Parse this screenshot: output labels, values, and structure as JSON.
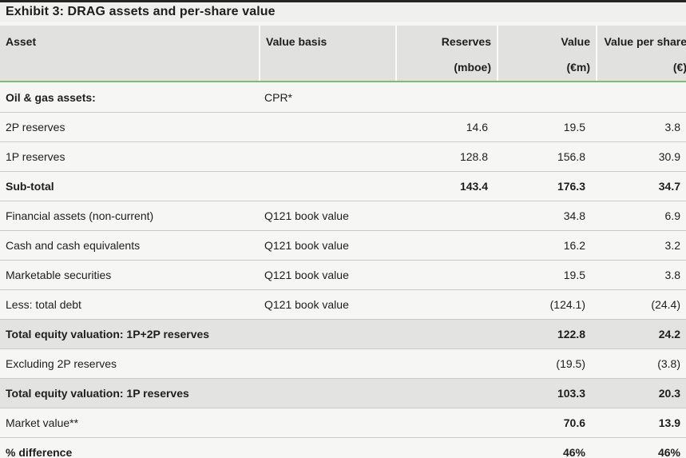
{
  "exhibit": {
    "title": "Exhibit 3: DRAG assets and per-share value"
  },
  "table": {
    "columns": [
      {
        "label": "Asset",
        "unit": "",
        "align": "left"
      },
      {
        "label": "Value basis",
        "unit": "",
        "align": "left"
      },
      {
        "label": "Reserves",
        "unit": "(mboe)",
        "align": "right"
      },
      {
        "label": "Value",
        "unit": "(€m)",
        "align": "right"
      },
      {
        "label": "Value per share",
        "unit": "(€)",
        "align": "right"
      }
    ],
    "rows": [
      {
        "asset": "Oil & gas assets:",
        "value_basis": "CPR*",
        "reserves": "",
        "value": "",
        "value_per_share": "",
        "bold_label": true,
        "bold_values": false,
        "shaded": false
      },
      {
        "asset": "2P reserves",
        "value_basis": "",
        "reserves": "14.6",
        "value": "19.5",
        "value_per_share": "3.8",
        "bold_label": false,
        "bold_values": false,
        "shaded": false
      },
      {
        "asset": "1P reserves",
        "value_basis": "",
        "reserves": "128.8",
        "value": "156.8",
        "value_per_share": "30.9",
        "bold_label": false,
        "bold_values": false,
        "shaded": false
      },
      {
        "asset": "Sub-total",
        "value_basis": "",
        "reserves": "143.4",
        "value": "176.3",
        "value_per_share": "34.7",
        "bold_label": true,
        "bold_values": true,
        "shaded": false
      },
      {
        "asset": "Financial assets (non-current)",
        "value_basis": "Q121 book value",
        "reserves": "",
        "value": "34.8",
        "value_per_share": "6.9",
        "bold_label": false,
        "bold_values": false,
        "shaded": false
      },
      {
        "asset": "Cash and cash equivalents",
        "value_basis": "Q121 book value",
        "reserves": "",
        "value": "16.2",
        "value_per_share": "3.2",
        "bold_label": false,
        "bold_values": false,
        "shaded": false
      },
      {
        "asset": "Marketable securities",
        "value_basis": "Q121 book value",
        "reserves": "",
        "value": "19.5",
        "value_per_share": "3.8",
        "bold_label": false,
        "bold_values": false,
        "shaded": false
      },
      {
        "asset": "Less: total debt",
        "value_basis": "Q121 book value",
        "reserves": "",
        "value": "(124.1)",
        "value_per_share": "(24.4)",
        "bold_label": false,
        "bold_values": false,
        "shaded": false
      },
      {
        "asset": "Total equity valuation: 1P+2P reserves",
        "value_basis": "",
        "reserves": "",
        "value": "122.8",
        "value_per_share": "24.2",
        "bold_label": true,
        "bold_values": true,
        "shaded": true
      },
      {
        "asset": "Excluding 2P reserves",
        "value_basis": "",
        "reserves": "",
        "value": "(19.5)",
        "value_per_share": "(3.8)",
        "bold_label": false,
        "bold_values": false,
        "shaded": false
      },
      {
        "asset": "Total equity valuation: 1P reserves",
        "value_basis": "",
        "reserves": "",
        "value": "103.3",
        "value_per_share": "20.3",
        "bold_label": true,
        "bold_values": true,
        "shaded": true
      },
      {
        "asset": "Market value**",
        "value_basis": "",
        "reserves": "",
        "value": "70.6",
        "value_per_share": "13.9",
        "bold_label": false,
        "bold_values": true,
        "shaded": false
      },
      {
        "asset": "% difference",
        "value_basis": "",
        "reserves": "",
        "value": "46%",
        "value_per_share": "46%",
        "bold_label": true,
        "bold_values": true,
        "shaded": false
      }
    ]
  },
  "colors": {
    "accent_green_rule": "#7cbe74",
    "header_background": "#e1e1df",
    "shaded_row_background": "#e3e3e1",
    "page_background": "#f6f6f4",
    "title_top_border": "#262626",
    "row_divider": "#c9c9c9",
    "text": "#1e1e1e"
  }
}
